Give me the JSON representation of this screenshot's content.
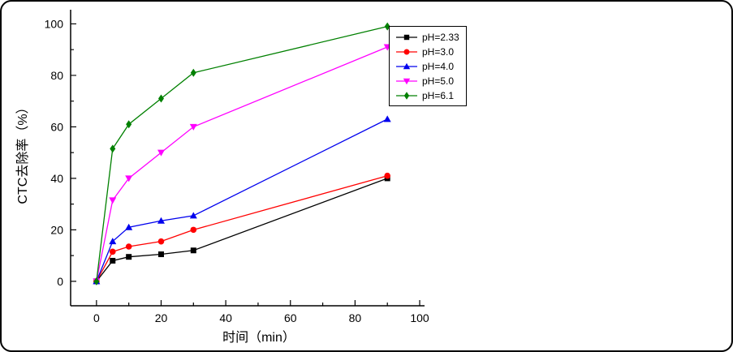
{
  "chart_data": {
    "type": "line",
    "title": "",
    "xlabel": "时间（min）",
    "ylabel": "CTC去除率（%）",
    "background": "#ffffff",
    "axis_color": "#000000",
    "grid": false,
    "legend_position": "top-right-inside",
    "x": [
      0,
      5,
      10,
      20,
      30,
      90
    ],
    "xlim": [
      -8,
      101.5
    ],
    "ylim": [
      -9.5,
      105.5
    ],
    "x_major_ticks": [
      0,
      20,
      40,
      60,
      80,
      100
    ],
    "x_minor_ticks": [
      10,
      30,
      50,
      70,
      90
    ],
    "y_major_ticks": [
      0,
      20,
      40,
      60,
      80,
      100
    ],
    "y_minor_ticks": [
      10,
      30,
      50,
      70,
      90
    ],
    "series": [
      {
        "name": "pH=2.33",
        "color": "#000000",
        "marker": "square",
        "values": [
          0,
          8,
          9.5,
          10.5,
          12,
          40
        ]
      },
      {
        "name": "pH=3.0",
        "color": "#ff0000",
        "marker": "circle",
        "values": [
          0,
          11.5,
          13.5,
          15.5,
          20,
          41
        ]
      },
      {
        "name": "pH=4.0",
        "color": "#0000ee",
        "marker": "triangle-up",
        "values": [
          0,
          15.5,
          21,
          23.5,
          25.5,
          63
        ]
      },
      {
        "name": "pH=5.0",
        "color": "#ff00ff",
        "marker": "triangle-down",
        "values": [
          0,
          31.5,
          40,
          50,
          60,
          91
        ]
      },
      {
        "name": "pH=6.1",
        "color": "#008000",
        "marker": "diamond",
        "values": [
          0,
          51.5,
          61,
          71,
          81,
          99
        ]
      }
    ]
  }
}
